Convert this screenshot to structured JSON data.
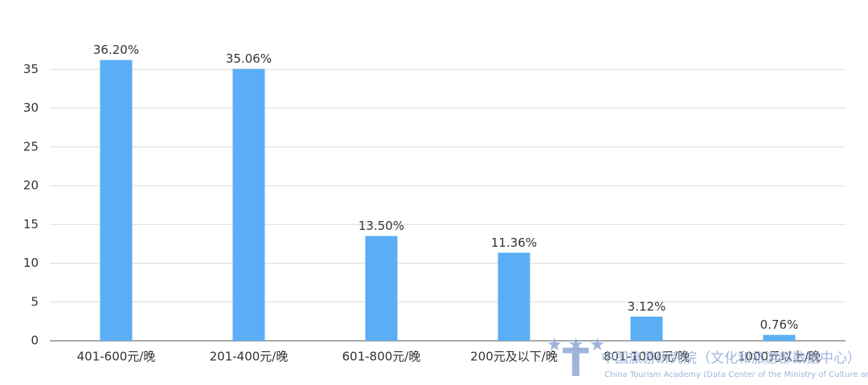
{
  "chart_data": {
    "type": "bar",
    "categories": [
      "401-600元/晚",
      "201-400元/晚",
      "601-800元/晚",
      "200元及以下/晚",
      "801-1000元/晚",
      "1000元以上/晚"
    ],
    "values": [
      36.2,
      35.06,
      13.5,
      11.36,
      3.12,
      0.76
    ],
    "value_labels": [
      "36.20%",
      "35.06%",
      "13.50%",
      "11.36%",
      "3.12%",
      "0.76%"
    ],
    "color": "#5aaef5",
    "ylim": [
      0,
      40
    ],
    "yticks": [
      0,
      5,
      10,
      15,
      20,
      25,
      30,
      35
    ],
    "grid": true
  },
  "watermark": {
    "title": "中国旅游研究院（文化和旅游部数据中心）",
    "subtitle": "China Tourism Academy (Data Center of the Ministry of Culture and Tourism)"
  }
}
